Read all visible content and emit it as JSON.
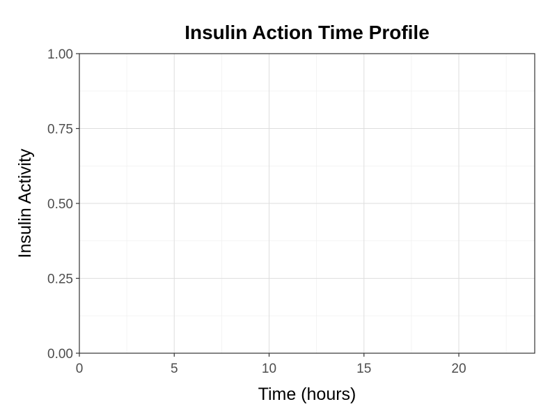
{
  "chart_data": {
    "type": "line",
    "title": "Insulin Action Time Profile",
    "xlabel": "Time (hours)",
    "ylabel": "Insulin Activity",
    "xlim": [
      0,
      24
    ],
    "ylim": [
      0,
      1
    ],
    "x_ticks": [
      0,
      5,
      10,
      15,
      20
    ],
    "x_tick_labels": [
      "0",
      "5",
      "10",
      "15",
      "20"
    ],
    "y_ticks": [
      0,
      0.25,
      0.5,
      0.75,
      1
    ],
    "y_tick_labels": [
      "0.00",
      "0.25",
      "0.50",
      "0.75",
      "1.00"
    ],
    "grid": true,
    "series": []
  }
}
